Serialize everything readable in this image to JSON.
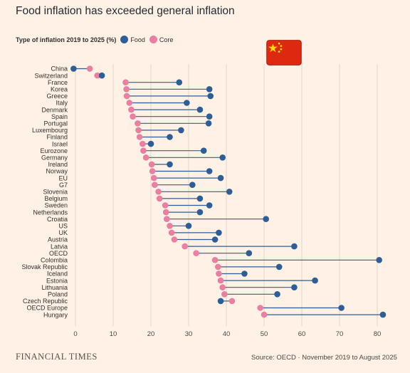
{
  "title": "Food inflation has exceeded general inflation",
  "legend": {
    "title": "Type of inflation 2019 to 2025 (%)",
    "items": [
      {
        "label": "Food",
        "color": "#2f5d96"
      },
      {
        "label": "Core",
        "color": "#ea7fa1"
      }
    ]
  },
  "flag_icon": "china-flag-icon",
  "footer": {
    "brand": "FINANCIAL TIMES",
    "source": "Source: OECD · November 2019 to August 2025"
  },
  "chart_data": {
    "type": "dumbbell",
    "xlim": [
      -2,
      82
    ],
    "xticks": [
      0,
      10,
      20,
      30,
      40,
      50,
      60,
      70,
      80
    ],
    "grid": true,
    "orientation": "horizontal",
    "categories": [
      "China",
      "Switzerland",
      "France",
      "Korea",
      "Greece",
      "Italy",
      "Denmark",
      "Spain",
      "Portugal",
      "Luxembourg",
      "Finland",
      "Israel",
      "Eurozone",
      "Germany",
      "Ireland",
      "Norway",
      "EU",
      "G7",
      "Slovenia",
      "Belgium",
      "Sweden",
      "Netherlands",
      "Croatia",
      "US",
      "UK",
      "Austria",
      "Latvia",
      "OECD",
      "Colombia",
      "Slovak Republic",
      "Iceland",
      "Estonia",
      "Lithuania",
      "Poland",
      "Czech Republic",
      "OECD Europe",
      "Hungary"
    ],
    "series": [
      {
        "name": "Food",
        "color": "#2f5d96",
        "values": [
          -0.5,
          7,
          27.5,
          35.5,
          35.8,
          29.5,
          33,
          35.5,
          35.3,
          28,
          25,
          20,
          34,
          39,
          25,
          35.5,
          38.5,
          31,
          40.8,
          33,
          35.5,
          33,
          50.5,
          30,
          38,
          37,
          58,
          46,
          80.5,
          54,
          44.8,
          63.5,
          58,
          53.5,
          38.5,
          70.5,
          81.5
        ]
      },
      {
        "name": "Core",
        "color": "#ea7fa1",
        "values": [
          3.8,
          5.8,
          13.3,
          13.5,
          13.6,
          14.3,
          14.8,
          15.2,
          16.5,
          16.7,
          17,
          17.8,
          18,
          18.7,
          20.2,
          20.4,
          20.8,
          21,
          22,
          22.3,
          23.8,
          24,
          24.2,
          25,
          25.5,
          26.2,
          29,
          32,
          37,
          37.8,
          38,
          38.5,
          39,
          39.5,
          41.5,
          49,
          50
        ]
      }
    ]
  }
}
